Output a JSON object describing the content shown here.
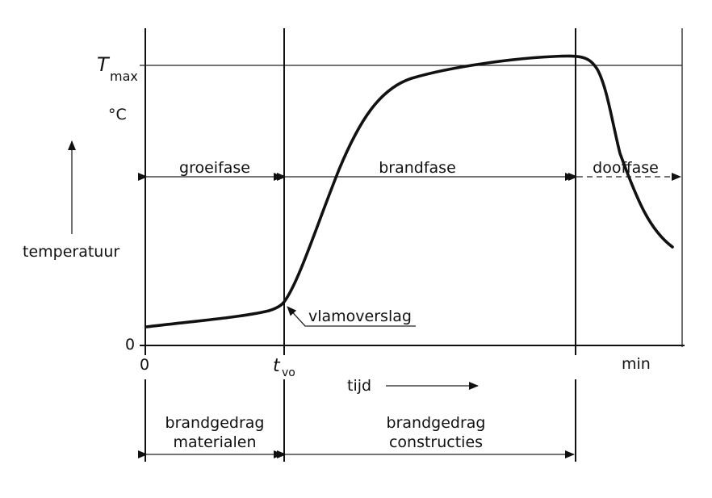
{
  "axes": {
    "y_label": "temperatuur",
    "y_unit": "°C",
    "y_max_label": "T",
    "y_max_sub": "max",
    "y_zero": "0",
    "x_zero": "0",
    "x_tvo": "t",
    "x_tvo_sub": "vo",
    "x_unit": "min",
    "x_label": "tijd"
  },
  "phases": [
    {
      "label": "groeifase"
    },
    {
      "label": "brandfase"
    },
    {
      "label": "dooffase"
    }
  ],
  "annotation": "vlamoverslag",
  "behaviour": [
    {
      "line1": "brandgedrag",
      "line2": "materialen"
    },
    {
      "line1": "brandgedrag",
      "line2": "constructies"
    }
  ],
  "colors": {
    "ink": "#111111",
    "background": "#ffffff"
  }
}
